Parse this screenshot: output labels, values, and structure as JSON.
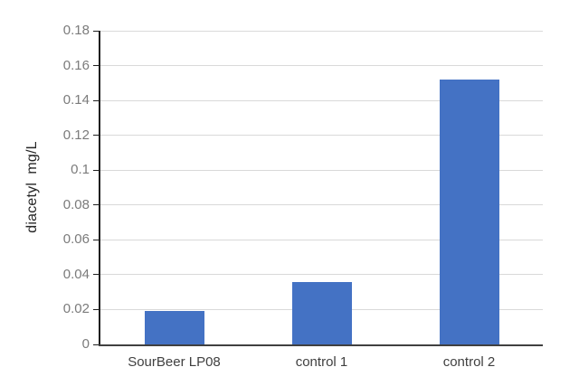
{
  "chart_data": {
    "type": "bar",
    "title": "",
    "xlabel": "",
    "ylabel": "diacetyl  mg/L",
    "categories": [
      "SourBeer LP08",
      "control 1",
      "control 2"
    ],
    "series": [
      {
        "name": "diacetyl",
        "values": [
          0.019,
          0.036,
          0.152
        ]
      }
    ],
    "values": [
      0.019,
      0.036,
      0.152
    ],
    "ylim": [
      0,
      0.18
    ],
    "y_tick_step": 0.02,
    "y_ticks": [
      {
        "value": 0,
        "label": "0"
      },
      {
        "value": 0.02,
        "label": "0.02"
      },
      {
        "value": 0.04,
        "label": "0.04"
      },
      {
        "value": 0.06,
        "label": "0.06"
      },
      {
        "value": 0.08,
        "label": "0.08"
      },
      {
        "value": 0.1,
        "label": "0.1"
      },
      {
        "value": 0.12,
        "label": "0.12"
      },
      {
        "value": 0.14,
        "label": "0.14"
      },
      {
        "value": 0.16,
        "label": "0.16"
      },
      {
        "value": 0.18,
        "label": "0.18"
      }
    ],
    "grid": "horizontal",
    "legend": "none",
    "colors": {
      "bar": "#4472c4",
      "gridline": "#d9d9d9",
      "y_axis_line": "#1f1f1f",
      "x_axis_line": "#404040",
      "y_tick_label": "#7b7b7b",
      "x_tick_label": "#404040",
      "axis_title": "#262626",
      "background": "#ffffff"
    }
  }
}
